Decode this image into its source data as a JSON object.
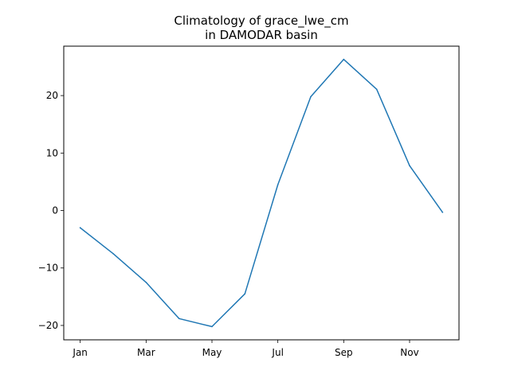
{
  "chart_data": {
    "type": "line",
    "title_line1": "Climatology of grace_lwe_cm",
    "title_line2": "in DAMODAR basin",
    "xlabel": "",
    "ylabel": "",
    "x_tick_labels": [
      "Jan",
      "Mar",
      "May",
      "Jul",
      "Sep",
      "Nov"
    ],
    "x_tick_months": [
      1,
      3,
      5,
      7,
      9,
      11
    ],
    "y_ticks": [
      -20,
      -10,
      0,
      10,
      20
    ],
    "y_tick_labels": [
      "−20",
      "−10",
      "0",
      "10",
      "20"
    ],
    "xlim": [
      0.5,
      12.5
    ],
    "ylim": [
      -22.5,
      28.6
    ],
    "grid": false,
    "colors": {
      "line": "#1f77b4"
    },
    "series": [
      {
        "months": [
          1,
          2,
          3,
          4,
          5,
          6,
          7,
          8,
          9,
          10,
          11,
          12
        ],
        "values": [
          -3.0,
          -7.5,
          -12.5,
          -18.8,
          -20.2,
          -14.5,
          4.5,
          19.8,
          26.3,
          21.1,
          7.8,
          -0.3
        ]
      }
    ]
  }
}
